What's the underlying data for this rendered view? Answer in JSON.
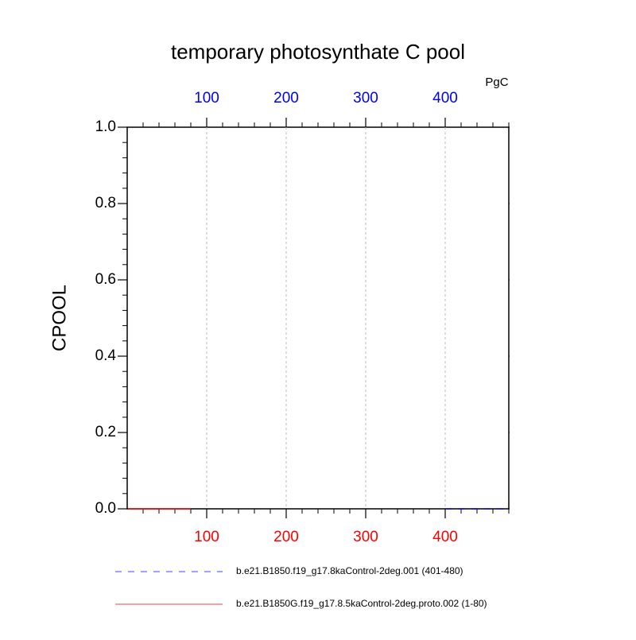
{
  "chart_data": {
    "type": "line",
    "title": "temporary photosynthate C pool",
    "ylabel": "CPOOL",
    "units": "PgC",
    "xlim": [
      0,
      480
    ],
    "xticks": [
      100,
      200,
      300,
      400
    ],
    "xtick_color": "#ff0000",
    "x2lim": [
      0,
      480
    ],
    "x2ticks": [
      100,
      200,
      300,
      400
    ],
    "x2tick_color": "#0000ff",
    "ylim": [
      0,
      1
    ],
    "yticks": [
      {
        "value": 0,
        "label": "0.0"
      },
      {
        "value": 0.2,
        "label": "0.2"
      },
      {
        "value": 0.4,
        "label": "0.4"
      },
      {
        "value": 0.6,
        "label": "0.6"
      },
      {
        "value": 0.8,
        "label": "0.8"
      },
      {
        "value": 1,
        "label": "1.0"
      }
    ],
    "grid": true,
    "series": [
      {
        "name": "b.e21.B1850.f19_g17.8kaControl-2deg.001 (401-480)",
        "color": "#0000ff",
        "dash": true,
        "axis": "x2",
        "x": [
          401,
          480
        ],
        "values": [
          0,
          0
        ]
      },
      {
        "name": "b.e21.B1850G.f19_g17.8.5kaControl-2deg.proto.002 (1-80)",
        "color": "#ff0000",
        "dash": false,
        "x": [
          1,
          80
        ],
        "values": [
          0,
          0
        ]
      }
    ]
  }
}
